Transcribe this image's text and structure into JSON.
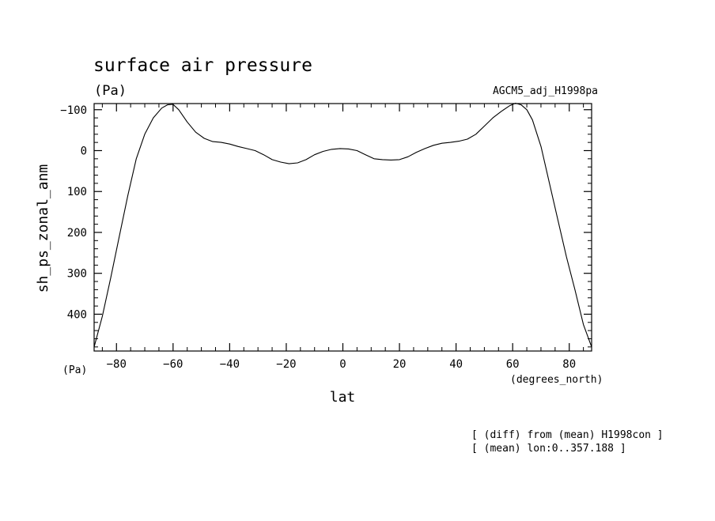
{
  "chart_data": {
    "type": "line",
    "title": "surface air pressure",
    "unit_label": "(Pa)",
    "dataset_label": "AGCM5_adj_H1998pa",
    "xlabel": "lat",
    "ylabel": "sh_ps_zonal_anm",
    "x_unit_label": "(degrees_north)",
    "y_unit_label": "(Pa)",
    "notes": [
      "[ (diff) from (mean) H1998con ]",
      "[ (mean) lon:0..357.188 ]"
    ],
    "xlim": [
      -87.9,
      87.9
    ],
    "ylim": [
      490,
      -115
    ],
    "y_inverted": true,
    "grid": false,
    "x_ticks": [
      -80,
      -60,
      -40,
      -20,
      0,
      20,
      40,
      60,
      80
    ],
    "x_tick_labels": [
      "−80",
      "−60",
      "−40",
      "−20",
      "0",
      "20",
      "40",
      "60",
      "80"
    ],
    "y_ticks": [
      -100,
      0,
      100,
      200,
      300,
      400
    ],
    "y_tick_labels": [
      "−100",
      "0",
      "100",
      "200",
      "300",
      "400"
    ],
    "series": [
      {
        "x": [
          -87.9,
          -85,
          -82,
          -79,
          -76,
          -73,
          -70,
          -67,
          -64,
          -62,
          -60,
          -58,
          -55,
          -52,
          -49,
          -46,
          -43,
          -40,
          -37,
          -34,
          -31,
          -28,
          -25,
          -22,
          -19,
          -16,
          -13,
          -10,
          -7,
          -4,
          -1,
          2,
          5,
          8,
          11,
          14,
          17,
          20,
          23,
          26,
          29,
          32,
          35,
          38,
          41,
          44,
          47,
          50,
          53,
          56,
          59,
          61,
          63,
          65,
          67,
          70,
          73,
          76,
          79,
          82,
          85,
          87.9
        ],
        "y": [
          480,
          405,
          310,
          210,
          110,
          20,
          -40,
          -80,
          -104,
          -112,
          -113,
          -100,
          -70,
          -45,
          -30,
          -22,
          -20,
          -16,
          -10,
          -5,
          0,
          10,
          22,
          28,
          32,
          30,
          22,
          10,
          2,
          -3,
          -5,
          -4,
          0,
          10,
          20,
          22,
          23,
          22,
          15,
          4,
          -5,
          -13,
          -18,
          -20,
          -23,
          -28,
          -40,
          -60,
          -80,
          -96,
          -110,
          -116,
          -112,
          -100,
          -75,
          -10,
          80,
          170,
          260,
          340,
          425,
          480
        ]
      }
    ]
  }
}
